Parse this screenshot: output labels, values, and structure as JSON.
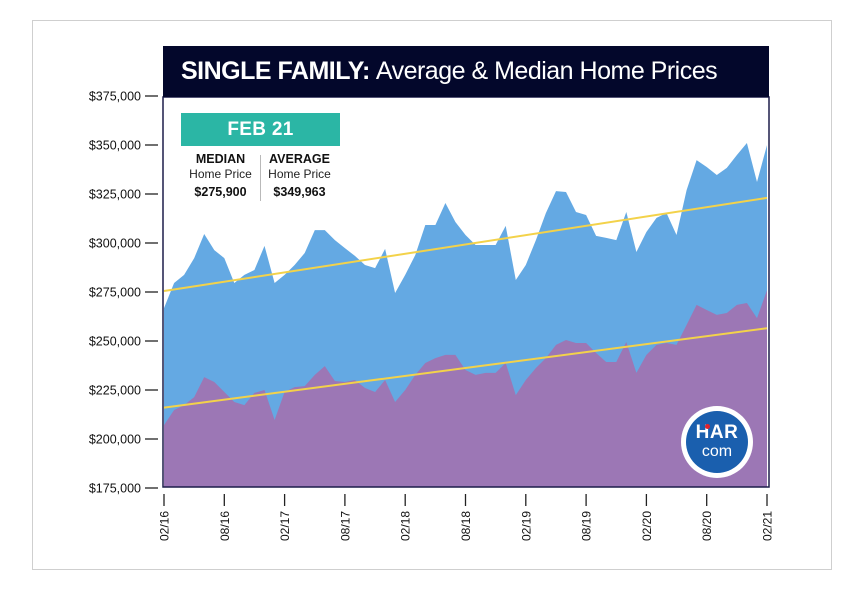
{
  "title": {
    "bold": "SINGLE FAMILY:",
    "light": "Average & Median Home Prices"
  },
  "callout": {
    "badge": "FEB 21",
    "median": {
      "heading": "MEDIAN",
      "sub": "Home Price",
      "value": "$275,900"
    },
    "average": {
      "heading": "AVERAGE",
      "sub": "Home Price",
      "value": "$349,963"
    }
  },
  "logo": {
    "top": "HAR",
    "bottom": "com"
  },
  "colors": {
    "average_area": "#64a9e3",
    "median_area": "#9c77b5",
    "trend_line": "#f3d24a",
    "header_bg": "#03072b",
    "badge": "#2bb6a5",
    "axis": "#1d1d4a"
  },
  "chart_data": {
    "type": "area",
    "title": "SINGLE FAMILY: Average & Median Home Prices",
    "xlabel": "",
    "ylabel": "",
    "ylim": [
      175000,
      375000
    ],
    "yticks": [
      175000,
      200000,
      225000,
      250000,
      275000,
      300000,
      325000,
      350000,
      375000
    ],
    "ytick_labels": [
      "$175,000",
      "$200,000",
      "$225,000",
      "$250,000",
      "$275,000",
      "$300,000",
      "$325,000",
      "$350,000",
      "$375,000"
    ],
    "xtick_labels": [
      "02/16",
      "08/16",
      "02/17",
      "08/17",
      "02/18",
      "08/18",
      "02/19",
      "08/19",
      "02/20",
      "08/20",
      "02/21"
    ],
    "xtick_month_index": [
      0,
      6,
      12,
      18,
      24,
      30,
      36,
      42,
      48,
      54,
      60
    ],
    "n_months": 61,
    "grid": false,
    "series": [
      {
        "name": "Average Home Price",
        "values": [
          266800,
          279600,
          283700,
          292300,
          304600,
          296400,
          292300,
          279600,
          283700,
          286200,
          298500,
          279600,
          283700,
          288800,
          294900,
          306600,
          306600,
          301500,
          297400,
          293400,
          288800,
          287200,
          297000,
          274500,
          283700,
          293900,
          309200,
          309200,
          320400,
          310700,
          304100,
          299000,
          299000,
          299000,
          308700,
          281100,
          288800,
          301500,
          315300,
          326500,
          326000,
          315800,
          314300,
          303600,
          302600,
          301500,
          315800,
          295400,
          305600,
          312800,
          315300,
          304100,
          327000,
          342300,
          338800,
          334700,
          338300,
          344900,
          351000,
          331100,
          349963
        ],
        "trend": [
          275500,
          323000
        ]
      },
      {
        "name": "Median Home Price",
        "values": [
          207100,
          214800,
          217300,
          221400,
          231600,
          229100,
          224000,
          218900,
          217300,
          223500,
          225000,
          209700,
          224000,
          226500,
          227000,
          232700,
          237200,
          229600,
          229100,
          230100,
          226000,
          224000,
          230100,
          218900,
          225000,
          232700,
          238800,
          241300,
          242900,
          242900,
          235200,
          232700,
          233700,
          233700,
          238800,
          222400,
          230100,
          236200,
          241300,
          248000,
          250500,
          249000,
          249000,
          243900,
          239300,
          239300,
          249500,
          233700,
          242900,
          248000,
          249000,
          248000,
          258200,
          268400,
          265800,
          263300,
          264300,
          268400,
          269400,
          261700,
          275900
        ],
        "trend": [
          216000,
          256500
        ]
      }
    ]
  }
}
